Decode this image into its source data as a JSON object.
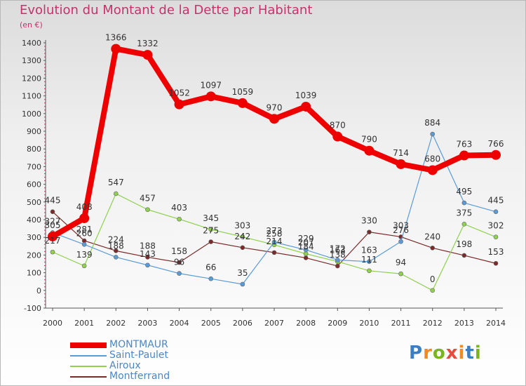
{
  "title": "Evolution du Montant de la Dette par Habitant",
  "subtitle": "(en €)",
  "logo": {
    "text": "Proxiti",
    "colors": [
      "#3a7fc3",
      "#f08a24",
      "#7ab51d",
      "#e84b3c",
      "#f08a24",
      "#3a7fc3",
      "#7ab51d"
    ]
  },
  "chart_data": {
    "type": "line",
    "x": [
      "2000",
      "2001",
      "2002",
      "2003",
      "2004",
      "2005",
      "2006",
      "2007",
      "2008",
      "2009",
      "2010",
      "2011",
      "2012",
      "2013",
      "2014"
    ],
    "yticks": [
      -100,
      0,
      100,
      200,
      300,
      400,
      500,
      600,
      700,
      800,
      900,
      1000,
      1100,
      1200,
      1300,
      1400
    ],
    "ylim": [
      -100,
      1400
    ],
    "grid": false,
    "legend_position": "bottom-left",
    "series": [
      {
        "name": "MONTMAUR",
        "color": "#ee0000",
        "values": [
          305,
          408,
          1366,
          1332,
          1052,
          1097,
          1059,
          970,
          1039,
          870,
          790,
          714,
          680,
          763,
          766
        ],
        "labels": [
          "305",
          "408",
          "1366",
          "1332",
          "1052",
          "1097",
          "1059",
          "970",
          "1039",
          "870",
          "790",
          "714",
          "680",
          "763",
          "766"
        ]
      },
      {
        "name": "Saint-Paulet",
        "color": "#5b9bd5",
        "values": [
          327,
          260,
          188,
          143,
          96,
          66,
          35,
          273,
          229,
          172,
          163,
          276,
          884,
          495,
          445
        ],
        "labels": [
          "327",
          "260",
          "188",
          "143",
          "96",
          "66",
          "35",
          "273",
          "229",
          "172",
          "163",
          "276",
          "884",
          "495",
          "445"
        ]
      },
      {
        "name": "Airoux",
        "color": "#8fd14f",
        "values": [
          217,
          139,
          547,
          457,
          403,
          345,
          303,
          258,
          207,
          163,
          111,
          94,
          0,
          375,
          302
        ],
        "labels": [
          "217",
          "139",
          "547",
          "457",
          "403",
          "345",
          "303",
          "258",
          "207",
          "163",
          "111",
          "94",
          "0",
          "375",
          "302"
        ]
      },
      {
        "name": "Montferrand",
        "color": "#7a2a2a",
        "values": [
          445,
          281,
          224,
          188,
          158,
          275,
          242,
          214,
          184,
          138,
          330,
          303,
          240,
          198,
          153
        ],
        "labels": [
          "445",
          "281",
          "224",
          "188",
          "158",
          "275",
          "242",
          "214",
          "184",
          "138",
          "330",
          "303",
          "240",
          "198",
          "153"
        ]
      }
    ]
  }
}
